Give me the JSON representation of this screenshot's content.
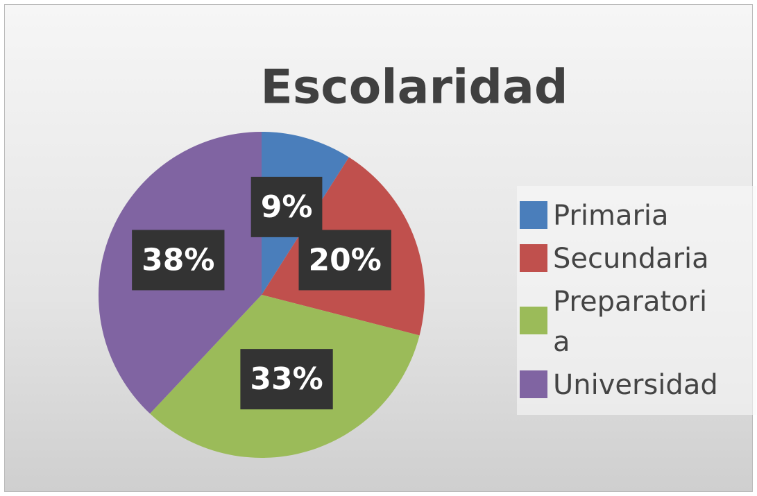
{
  "chart_data": {
    "type": "pie",
    "title": "Escolaridad",
    "categories": [
      "Primaria",
      "Secundaria",
      "Preparatoria",
      "Universidad"
    ],
    "values": [
      9,
      20,
      33,
      38
    ],
    "value_labels": [
      "9%",
      "20%",
      "33%",
      "38%"
    ],
    "colors": [
      "#4a7ebb",
      "#c0504d",
      "#9bbb59",
      "#8064a2"
    ],
    "legend": "right"
  }
}
